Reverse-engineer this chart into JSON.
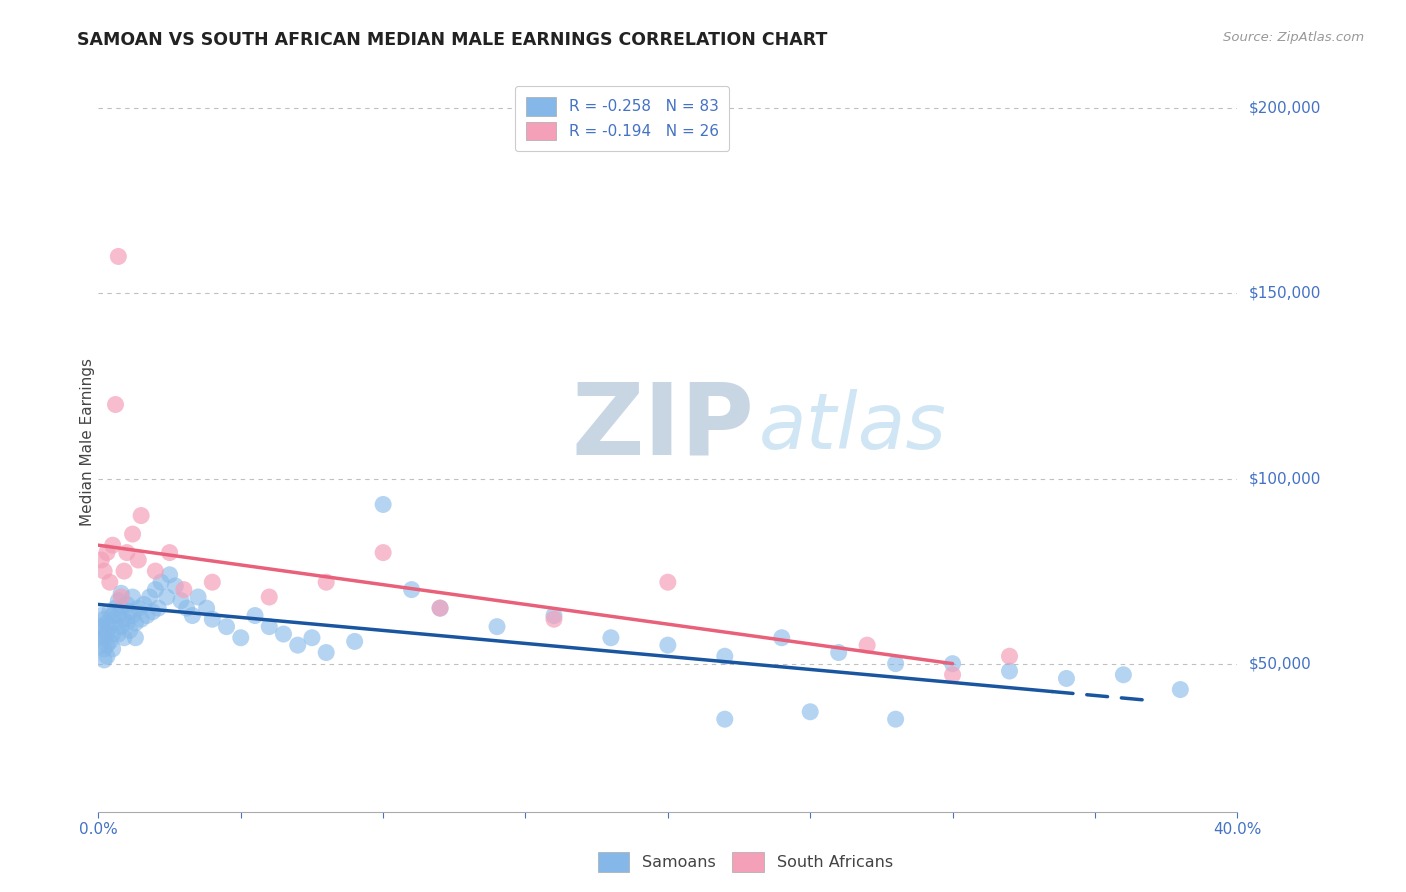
{
  "title": "SAMOAN VS SOUTH AFRICAN MEDIAN MALE EARNINGS CORRELATION CHART",
  "source": "Source: ZipAtlas.com",
  "ylabel": "Median Male Earnings",
  "x_min": 0.0,
  "x_max": 0.4,
  "y_min": 10000,
  "y_max": 210000,
  "yticks": [
    50000,
    100000,
    150000,
    200000
  ],
  "ytick_labels": [
    "$50,000",
    "$100,000",
    "$150,000",
    "$200,000"
  ],
  "legend_r1": "R = -0.258   N = 83",
  "legend_r2": "R = -0.194   N = 26",
  "color_samoan": "#85B8E8",
  "color_sa": "#F4A0B8",
  "color_trend_samoan": "#1A56A0",
  "color_trend_sa": "#E8607A",
  "background": "#FFFFFF",
  "samoan_x": [
    0.001,
    0.001,
    0.001,
    0.001,
    0.002,
    0.002,
    0.002,
    0.002,
    0.002,
    0.003,
    0.003,
    0.003,
    0.003,
    0.004,
    0.004,
    0.004,
    0.005,
    0.005,
    0.005,
    0.006,
    0.006,
    0.007,
    0.007,
    0.007,
    0.008,
    0.008,
    0.008,
    0.009,
    0.009,
    0.01,
    0.01,
    0.011,
    0.011,
    0.012,
    0.012,
    0.013,
    0.013,
    0.014,
    0.015,
    0.016,
    0.017,
    0.018,
    0.019,
    0.02,
    0.021,
    0.022,
    0.024,
    0.025,
    0.027,
    0.029,
    0.031,
    0.033,
    0.035,
    0.038,
    0.04,
    0.045,
    0.05,
    0.055,
    0.06,
    0.065,
    0.07,
    0.075,
    0.08,
    0.09,
    0.1,
    0.11,
    0.12,
    0.14,
    0.16,
    0.18,
    0.2,
    0.22,
    0.24,
    0.26,
    0.28,
    0.3,
    0.32,
    0.34,
    0.36,
    0.38,
    0.22,
    0.25,
    0.28
  ],
  "samoan_y": [
    63000,
    60000,
    58000,
    55000,
    62000,
    59000,
    57000,
    54000,
    51000,
    61000,
    58000,
    55000,
    52000,
    64000,
    60000,
    56000,
    63000,
    58000,
    54000,
    65000,
    61000,
    67000,
    63000,
    58000,
    69000,
    65000,
    60000,
    62000,
    57000,
    66000,
    61000,
    64000,
    59000,
    68000,
    63000,
    61000,
    57000,
    65000,
    62000,
    66000,
    63000,
    68000,
    64000,
    70000,
    65000,
    72000,
    68000,
    74000,
    71000,
    67000,
    65000,
    63000,
    68000,
    65000,
    62000,
    60000,
    57000,
    63000,
    60000,
    58000,
    55000,
    57000,
    53000,
    56000,
    93000,
    70000,
    65000,
    60000,
    63000,
    57000,
    55000,
    52000,
    57000,
    53000,
    50000,
    50000,
    48000,
    46000,
    47000,
    43000,
    35000,
    37000,
    35000
  ],
  "sa_x": [
    0.001,
    0.002,
    0.003,
    0.004,
    0.005,
    0.006,
    0.007,
    0.008,
    0.009,
    0.01,
    0.012,
    0.014,
    0.015,
    0.02,
    0.025,
    0.03,
    0.04,
    0.06,
    0.08,
    0.1,
    0.12,
    0.16,
    0.2,
    0.27,
    0.3,
    0.32
  ],
  "sa_y": [
    78000,
    75000,
    80000,
    72000,
    82000,
    120000,
    160000,
    68000,
    75000,
    80000,
    85000,
    78000,
    90000,
    75000,
    80000,
    70000,
    72000,
    68000,
    72000,
    80000,
    65000,
    62000,
    72000,
    55000,
    47000,
    52000
  ],
  "trend_samoan_x0": 0.0,
  "trend_samoan_y0": 66000,
  "trend_samoan_x1": 0.37,
  "trend_samoan_y1": 40000,
  "trend_samoan_solid_end": 0.335,
  "trend_sa_x0": 0.0,
  "trend_sa_y0": 82000,
  "trend_sa_x1": 0.3,
  "trend_sa_y1": 50000
}
